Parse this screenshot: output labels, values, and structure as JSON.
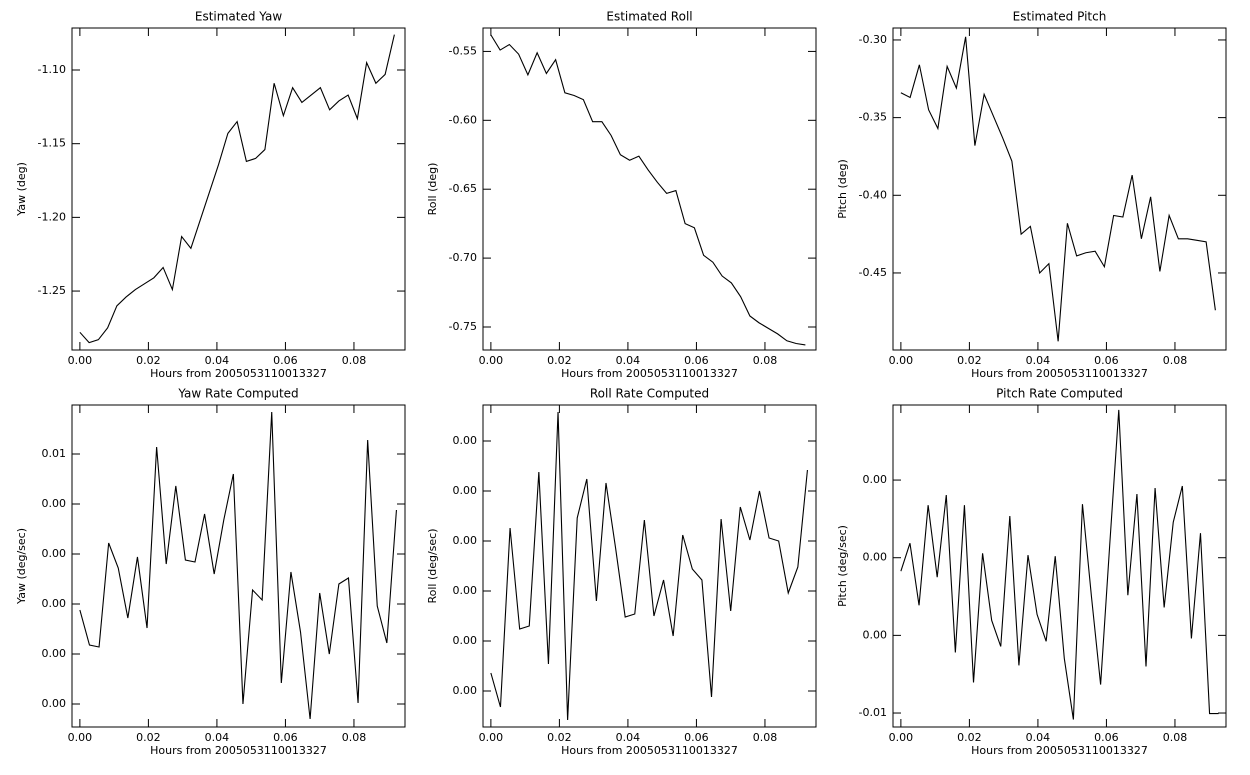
{
  "chart_data": [
    {
      "type": "line",
      "title": "Estimated Yaw",
      "xlabel": "Hours from 2005053110013327",
      "ylabel": "Yaw (deg)",
      "color": "#000000",
      "x": [
        0,
        0.0027,
        0.0054,
        0.0081,
        0.0108,
        0.0135,
        0.0162,
        0.0189,
        0.0216,
        0.0243,
        0.027,
        0.0297,
        0.0324,
        0.0351,
        0.0378,
        0.0405,
        0.0432,
        0.0459,
        0.0486,
        0.0513,
        0.054,
        0.0567,
        0.0594,
        0.0621,
        0.0648,
        0.0675,
        0.0702,
        0.0729,
        0.0756,
        0.0783,
        0.081,
        0.0837,
        0.0864,
        0.0891,
        0.0918
      ],
      "values": [
        -1.278,
        -1.285,
        -1.283,
        -1.275,
        -1.26,
        -1.254,
        -1.249,
        -1.245,
        -1.241,
        -1.234,
        -1.249,
        -1.213,
        -1.221,
        -1.202,
        -1.183,
        -1.164,
        -1.143,
        -1.135,
        -1.162,
        -1.16,
        -1.154,
        -1.109,
        -1.131,
        -1.112,
        -1.122,
        -1.117,
        -1.112,
        -1.127,
        -1.121,
        -1.117,
        -1.133,
        -1.095,
        -1.109,
        -1.103,
        -1.076
      ],
      "xlim": [
        -0.0023,
        0.0949
      ],
      "ylim": [
        -1.29,
        -1.0715
      ],
      "xticks": [
        {
          "value": 0,
          "label": "0.00"
        },
        {
          "value": 0.02,
          "label": "0.02"
        },
        {
          "value": 0.04,
          "label": "0.04"
        },
        {
          "value": 0.06,
          "label": "0.06"
        },
        {
          "value": 0.08,
          "label": "0.08"
        }
      ],
      "yticks": [
        {
          "value": -1.25,
          "label": "-1.25"
        },
        {
          "value": -1.2,
          "label": "-1.20"
        },
        {
          "value": -1.15,
          "label": "-1.15"
        },
        {
          "value": -1.1,
          "label": "-1.10"
        }
      ]
    },
    {
      "type": "line",
      "title": "Estimated Roll",
      "xlabel": "Hours from 2005053110013327",
      "ylabel": "Roll (deg)",
      "color": "#000000",
      "x": [
        0,
        0.0027,
        0.0054,
        0.0081,
        0.0108,
        0.0135,
        0.0162,
        0.0189,
        0.0216,
        0.0243,
        0.027,
        0.0297,
        0.0324,
        0.0351,
        0.0378,
        0.0405,
        0.0432,
        0.0459,
        0.0486,
        0.0513,
        0.054,
        0.0567,
        0.0594,
        0.0621,
        0.0648,
        0.0675,
        0.0702,
        0.0729,
        0.0756,
        0.0783,
        0.081,
        0.0837,
        0.0864,
        0.0891,
        0.0918
      ],
      "values": [
        -0.538,
        -0.549,
        -0.545,
        -0.552,
        -0.567,
        -0.551,
        -0.566,
        -0.556,
        -0.58,
        -0.582,
        -0.585,
        -0.601,
        -0.601,
        -0.611,
        -0.625,
        -0.629,
        -0.626,
        -0.636,
        -0.645,
        -0.653,
        -0.651,
        -0.675,
        -0.678,
        -0.698,
        -0.703,
        -0.713,
        -0.718,
        -0.728,
        -0.742,
        -0.747,
        -0.751,
        -0.755,
        -0.76,
        -0.762,
        -0.763
      ],
      "xlim": [
        -0.0023,
        0.0949
      ],
      "ylim": [
        -0.7667,
        -0.533
      ],
      "xticks": [
        {
          "value": 0,
          "label": "0.00"
        },
        {
          "value": 0.02,
          "label": "0.02"
        },
        {
          "value": 0.04,
          "label": "0.04"
        },
        {
          "value": 0.06,
          "label": "0.06"
        },
        {
          "value": 0.08,
          "label": "0.08"
        }
      ],
      "yticks": [
        {
          "value": -0.75,
          "label": "-0.75"
        },
        {
          "value": -0.7,
          "label": "-0.70"
        },
        {
          "value": -0.65,
          "label": "-0.65"
        },
        {
          "value": -0.6,
          "label": "-0.60"
        },
        {
          "value": -0.55,
          "label": "-0.55"
        }
      ]
    },
    {
      "type": "line",
      "title": "Estimated Pitch",
      "xlabel": "Hours from 2005053110013327",
      "ylabel": "Pitch (deg)",
      "color": "#000000",
      "x": [
        0,
        0.0027,
        0.0054,
        0.0081,
        0.0108,
        0.0135,
        0.0162,
        0.0189,
        0.0216,
        0.0243,
        0.027,
        0.0297,
        0.0324,
        0.0351,
        0.0378,
        0.0405,
        0.0432,
        0.0459,
        0.0486,
        0.0513,
        0.054,
        0.0567,
        0.0594,
        0.0621,
        0.0648,
        0.0675,
        0.0702,
        0.0729,
        0.0756,
        0.0783,
        0.081,
        0.0837,
        0.0864,
        0.0891,
        0.0918
      ],
      "values": [
        -0.334,
        -0.337,
        -0.316,
        -0.345,
        -0.357,
        -0.317,
        -0.331,
        -0.298,
        -0.368,
        -0.335,
        -0.349,
        -0.363,
        -0.378,
        -0.425,
        -0.42,
        -0.45,
        -0.444,
        -0.494,
        -0.418,
        -0.439,
        -0.437,
        -0.436,
        -0.446,
        -0.413,
        -0.414,
        -0.387,
        -0.428,
        -0.401,
        -0.449,
        -0.413,
        -0.428,
        -0.428,
        -0.429,
        -0.43,
        -0.474
      ],
      "xlim": [
        -0.0023,
        0.0949
      ],
      "ylim": [
        -0.4996,
        -0.2923
      ],
      "xticks": [
        {
          "value": 0,
          "label": "0.00"
        },
        {
          "value": 0.02,
          "label": "0.02"
        },
        {
          "value": 0.04,
          "label": "0.04"
        },
        {
          "value": 0.06,
          "label": "0.06"
        },
        {
          "value": 0.08,
          "label": "0.08"
        }
      ],
      "yticks": [
        {
          "value": -0.45,
          "label": "-0.45"
        },
        {
          "value": -0.4,
          "label": "-0.40"
        },
        {
          "value": -0.35,
          "label": "-0.35"
        },
        {
          "value": -0.3,
          "label": "-0.30"
        }
      ]
    },
    {
      "type": "line",
      "title": "Yaw Rate Computed",
      "xlabel": "Hours from 2005053110013327",
      "ylabel": "Yaw (deg/sec)",
      "color": "#000000",
      "x": [
        0,
        0.0028,
        0.0056,
        0.0084,
        0.0112,
        0.014,
        0.0168,
        0.0196,
        0.0224,
        0.0252,
        0.028,
        0.0308,
        0.0336,
        0.0364,
        0.0392,
        0.042,
        0.0448,
        0.0476,
        0.0504,
        0.0532,
        0.056,
        0.0588,
        0.0616,
        0.0644,
        0.0672,
        0.07,
        0.0728,
        0.0756,
        0.0784,
        0.0812,
        0.084,
        0.0868,
        0.0896,
        0.0924
      ],
      "values": [
        0.00188,
        0.00118,
        0.00114,
        0.00322,
        0.00272,
        0.00172,
        0.00294,
        0.00152,
        0.00514,
        0.0028,
        0.00436,
        0.00288,
        0.00284,
        0.0038,
        0.0026,
        0.00368,
        0.0046,
        0.0,
        0.00228,
        0.00208,
        0.00584,
        0.00042,
        0.00264,
        0.00144,
        -0.0003,
        0.00222,
        0.001,
        0.0024,
        0.00252,
        2e-05,
        0.00528,
        0.00196,
        0.00122,
        0.00388
      ],
      "xlim": [
        -0.0023,
        0.0949
      ],
      "ylim": [
        -0.00046,
        0.00598
      ],
      "xticks": [
        {
          "value": 0,
          "label": "0.00"
        },
        {
          "value": 0.02,
          "label": "0.02"
        },
        {
          "value": 0.04,
          "label": "0.04"
        },
        {
          "value": 0.06,
          "label": "0.06"
        },
        {
          "value": 0.08,
          "label": "0.08"
        }
      ],
      "yticks": [
        {
          "value": 0.0,
          "label": "0.00"
        },
        {
          "value": 0.001,
          "label": "0.00"
        },
        {
          "value": 0.002,
          "label": "0.00"
        },
        {
          "value": 0.003,
          "label": "0.00"
        },
        {
          "value": 0.004,
          "label": "0.00"
        },
        {
          "value": 0.005,
          "label": "0.01"
        }
      ]
    },
    {
      "type": "line",
      "title": "Roll Rate Computed",
      "xlabel": "Hours from 2005053110013327",
      "ylabel": "Roll (deg/sec)",
      "color": "#000000",
      "x": [
        0,
        0.0028,
        0.0056,
        0.0084,
        0.0112,
        0.014,
        0.0168,
        0.0196,
        0.0224,
        0.0252,
        0.028,
        0.0308,
        0.0336,
        0.0364,
        0.0392,
        0.042,
        0.0448,
        0.0476,
        0.0504,
        0.0532,
        0.056,
        0.0588,
        0.0616,
        0.0644,
        0.0672,
        0.07,
        0.0728,
        0.0756,
        0.0784,
        0.0812,
        0.084,
        0.0868,
        0.0896,
        0.0924
      ],
      "values": [
        0.00018,
        -0.00016,
        0.00163,
        0.00062,
        0.00065,
        0.00219,
        0.00027,
        0.00279,
        -0.00029,
        0.00173,
        0.00212,
        0.0009,
        0.00208,
        0.00143,
        0.00074,
        0.00077,
        0.00171,
        0.00075,
        0.00111,
        0.00055,
        0.00156,
        0.00122,
        0.00111,
        -6e-05,
        0.00172,
        0.0008,
        0.00184,
        0.00151,
        0.002,
        0.00153,
        0.0015,
        0.00098,
        0.00124,
        0.00221
      ],
      "xlim": [
        -0.0023,
        0.0949
      ],
      "ylim": [
        -0.00036,
        0.00286
      ],
      "xticks": [
        {
          "value": 0,
          "label": "0.00"
        },
        {
          "value": 0.02,
          "label": "0.02"
        },
        {
          "value": 0.04,
          "label": "0.04"
        },
        {
          "value": 0.06,
          "label": "0.06"
        },
        {
          "value": 0.08,
          "label": "0.08"
        }
      ],
      "yticks": [
        {
          "value": 0.0,
          "label": "0.00"
        },
        {
          "value": 0.0005,
          "label": "0.00"
        },
        {
          "value": 0.001,
          "label": "0.00"
        },
        {
          "value": 0.0015,
          "label": "0.00"
        },
        {
          "value": 0.002,
          "label": "0.00"
        },
        {
          "value": 0.0025,
          "label": "0.00"
        }
      ]
    },
    {
      "type": "line",
      "title": "Pitch Rate Computed",
      "xlabel": "Hours from 2005053110013327",
      "ylabel": "Pitch (deg/sec)",
      "color": "#000000",
      "x": [
        0,
        0.00265,
        0.0053,
        0.00795,
        0.0106,
        0.01325,
        0.0159,
        0.01855,
        0.0212,
        0.02385,
        0.0265,
        0.02915,
        0.0318,
        0.03445,
        0.0371,
        0.03975,
        0.0424,
        0.04505,
        0.0477,
        0.05035,
        0.053,
        0.05565,
        0.0583,
        0.06095,
        0.0636,
        0.06625,
        0.0689,
        0.07155,
        0.0742,
        0.07685,
        0.0795,
        0.08215,
        0.0848,
        0.08745,
        0.0901,
        0.09275
      ],
      "values": [
        0.00048,
        0.00156,
        -0.00084,
        0.00303,
        0.00025,
        0.00342,
        -0.00266,
        0.00303,
        -0.00382,
        0.00117,
        -0.00142,
        -0.00243,
        0.00261,
        -0.00316,
        0.0011,
        -0.00119,
        -0.00223,
        0.00106,
        -0.00289,
        -0.00525,
        0.00307,
        -0.00053,
        -0.0039,
        0.00148,
        0.00671,
        -0.00045,
        0.00346,
        -0.0032,
        0.00369,
        -0.00092,
        0.00237,
        0.00377,
        -0.00212,
        0.00195,
        -0.00502,
        -0.00502
      ],
      "xlim": [
        -0.0023,
        0.0949
      ],
      "ylim": [
        -0.00554,
        0.0069
      ],
      "xticks": [
        {
          "value": 0,
          "label": "0.00"
        },
        {
          "value": 0.02,
          "label": "0.02"
        },
        {
          "value": 0.04,
          "label": "0.04"
        },
        {
          "value": 0.06,
          "label": "0.06"
        },
        {
          "value": 0.08,
          "label": "0.08"
        }
      ],
      "yticks": [
        {
          "value": -0.005,
          "label": "-0.01"
        },
        {
          "value": -0.002,
          "label": "0.00"
        },
        {
          "value": 0.001,
          "label": "0.00"
        },
        {
          "value": 0.004,
          "label": "0.00"
        }
      ]
    }
  ]
}
